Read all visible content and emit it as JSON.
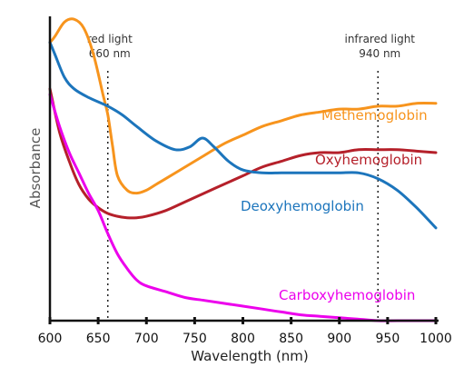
{
  "chart_data": {
    "type": "line",
    "xlabel": "Wavelength (nm)",
    "ylabel": "Absorbance",
    "xlim": [
      600,
      1000
    ],
    "ylim": [
      0,
      1
    ],
    "xticks": [
      600,
      650,
      700,
      750,
      800,
      850,
      900,
      950,
      1000
    ],
    "grid": false,
    "reference_lines": [
      {
        "x": 660,
        "label_top": "red light",
        "label_bottom": "660 nm"
      },
      {
        "x": 940,
        "label_top": "infrared light",
        "label_bottom": "940 nm"
      }
    ],
    "series": [
      {
        "name": "Methemoglobin",
        "color": "#f7941d",
        "x": [
          600,
          605,
          615,
          625,
          635,
          645,
          655,
          660,
          665,
          670,
          680,
          690,
          700,
          710,
          720,
          740,
          760,
          780,
          800,
          820,
          840,
          860,
          880,
          900,
          920,
          940,
          960,
          980,
          1000
        ],
        "y": [
          0.96,
          0.98,
          1.03,
          1.04,
          1.01,
          0.92,
          0.78,
          0.71,
          0.6,
          0.5,
          0.45,
          0.44,
          0.45,
          0.47,
          0.49,
          0.53,
          0.57,
          0.61,
          0.64,
          0.67,
          0.69,
          0.71,
          0.72,
          0.73,
          0.73,
          0.74,
          0.74,
          0.75,
          0.75
        ]
      },
      {
        "name": "Oxyhemoglobin",
        "color": "#b5202a",
        "x": [
          600,
          610,
          620,
          630,
          640,
          650,
          660,
          670,
          680,
          690,
          700,
          720,
          740,
          760,
          780,
          800,
          820,
          840,
          860,
          880,
          900,
          920,
          940,
          960,
          980,
          1000
        ],
        "y": [
          0.8,
          0.65,
          0.55,
          0.47,
          0.42,
          0.39,
          0.37,
          0.36,
          0.355,
          0.355,
          0.36,
          0.38,
          0.41,
          0.44,
          0.47,
          0.5,
          0.53,
          0.55,
          0.57,
          0.58,
          0.58,
          0.59,
          0.59,
          0.59,
          0.585,
          0.58
        ]
      },
      {
        "name": "Deoxyhemoglobin",
        "color": "#1c75bc",
        "x": [
          600,
          605,
          615,
          625,
          640,
          660,
          675,
          690,
          710,
          730,
          745,
          758,
          770,
          785,
          800,
          820,
          840,
          860,
          880,
          900,
          920,
          940,
          960,
          980,
          1000
        ],
        "y": [
          0.96,
          0.92,
          0.84,
          0.8,
          0.77,
          0.74,
          0.71,
          0.67,
          0.62,
          0.59,
          0.6,
          0.63,
          0.6,
          0.55,
          0.52,
          0.51,
          0.51,
          0.51,
          0.51,
          0.51,
          0.51,
          0.49,
          0.45,
          0.39,
          0.32
        ]
      },
      {
        "name": "Carboxyhemoglobin",
        "color": "#ec00ec",
        "x": [
          600,
          610,
          620,
          630,
          640,
          650,
          660,
          670,
          680,
          690,
          700,
          720,
          740,
          760,
          780,
          800,
          820,
          840,
          860,
          880,
          900,
          920,
          940,
          960,
          980,
          1000
        ],
        "y": [
          0.78,
          0.67,
          0.58,
          0.51,
          0.44,
          0.38,
          0.3,
          0.23,
          0.18,
          0.14,
          0.12,
          0.1,
          0.08,
          0.07,
          0.06,
          0.05,
          0.04,
          0.03,
          0.02,
          0.015,
          0.01,
          0.005,
          0.0,
          0.0,
          0.0,
          0.0
        ]
      }
    ],
    "series_labels": [
      {
        "series": "Methemoglobin",
        "text": "Methemoglobin"
      },
      {
        "series": "Oxyhemoglobin",
        "text": "Oxyhemoglobin"
      },
      {
        "series": "Deoxyhemoglobin",
        "text": "Deoxyhemoglobin"
      },
      {
        "series": "Carboxyhemoglobin",
        "text": "Carboxyhemoglobin"
      }
    ]
  }
}
